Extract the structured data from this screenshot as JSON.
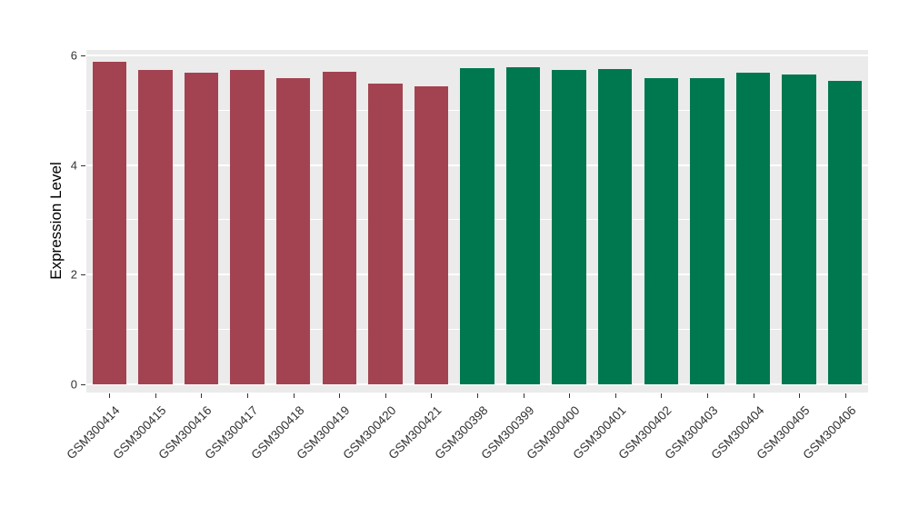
{
  "chart_data": {
    "type": "bar",
    "title": "",
    "xlabel": "",
    "ylabel": "Expression Level",
    "ylim": [
      0,
      6
    ],
    "yticks": [
      0,
      2,
      4,
      6
    ],
    "grid": "on",
    "legend": "none",
    "panel_background": "#EBEBEB",
    "gridline_color": "#FFFFFF",
    "categories": [
      "GSM300414",
      "GSM300415",
      "GSM300416",
      "GSM300417",
      "GSM300418",
      "GSM300419",
      "GSM300420",
      "GSM300421",
      "GSM300398",
      "GSM300399",
      "GSM300400",
      "GSM300401",
      "GSM300402",
      "GSM300403",
      "GSM300404",
      "GSM300405",
      "GSM300406"
    ],
    "values": [
      5.88,
      5.73,
      5.69,
      5.74,
      5.58,
      5.7,
      5.49,
      5.43,
      5.77,
      5.79,
      5.73,
      5.75,
      5.58,
      5.59,
      5.69,
      5.66,
      5.54
    ],
    "bar_colors": [
      "#A34351",
      "#A34351",
      "#A34351",
      "#A34351",
      "#A34351",
      "#A34351",
      "#A34351",
      "#A34351",
      "#00784F",
      "#00784F",
      "#00784F",
      "#00784F",
      "#00784F",
      "#00784F",
      "#00784F",
      "#00784F",
      "#00784F"
    ]
  }
}
